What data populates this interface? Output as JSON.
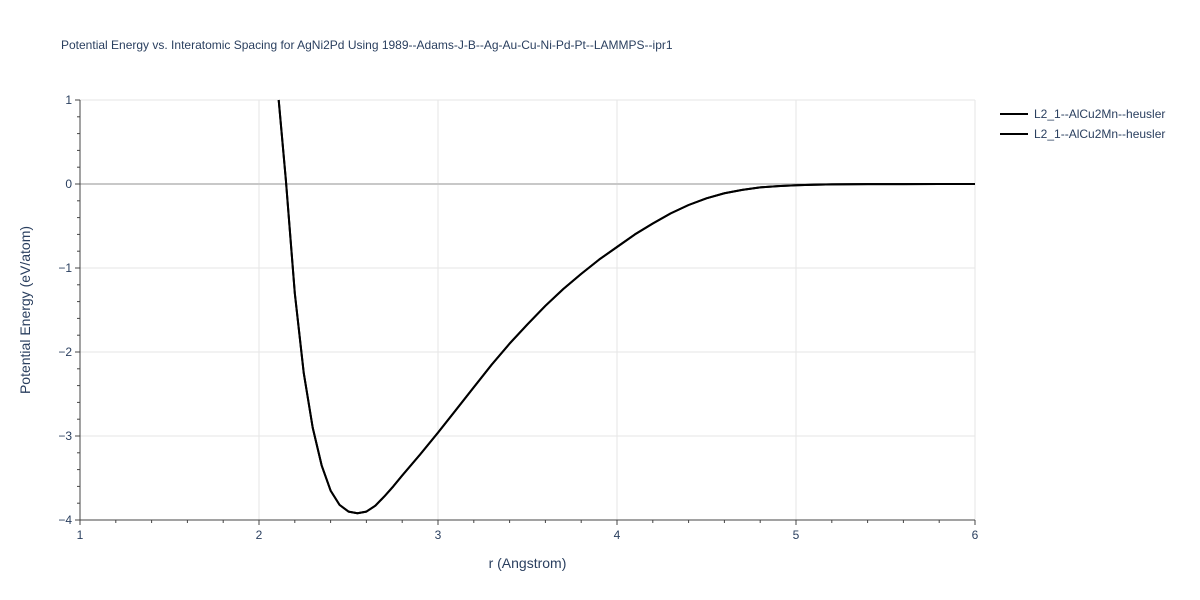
{
  "chart_data": {
    "type": "line",
    "title": "Potential Energy vs. Interatomic Spacing for AgNi2Pd Using 1989--Adams-J-B--Ag-Au-Cu-Ni-Pd-Pt--LAMMPS--ipr1",
    "xlabel": "r (Angstrom)",
    "ylabel": "Potential Energy (eV/atom)",
    "xlim": [
      1,
      6
    ],
    "ylim": [
      -4,
      1
    ],
    "x_ticks": [
      1,
      2,
      3,
      4,
      5,
      6
    ],
    "x_tick_labels": [
      "1",
      "2",
      "3",
      "4",
      "5",
      "6"
    ],
    "y_ticks": [
      1,
      0,
      -1,
      -2,
      -3,
      -4
    ],
    "y_tick_labels": [
      "1",
      "0",
      "−1",
      "−2",
      "−3",
      "−4"
    ],
    "grid": true,
    "legend_position": "top-right",
    "line_color": "#000000",
    "grid_color": "#e5e5e5",
    "zero_line_color": "#c8c8c8",
    "series": [
      {
        "name": "L2_1--AlCu2Mn--heusler",
        "x": [
          2.11,
          2.15,
          2.2,
          2.25,
          2.3,
          2.35,
          2.4,
          2.45,
          2.5,
          2.55,
          2.6,
          2.65,
          2.7,
          2.75,
          2.8,
          2.9,
          3.0,
          3.1,
          3.2,
          3.3,
          3.4,
          3.5,
          3.6,
          3.7,
          3.8,
          3.9,
          4.0,
          4.1,
          4.2,
          4.3,
          4.4,
          4.5,
          4.6,
          4.7,
          4.8,
          4.9,
          5.0,
          5.1,
          5.2,
          5.3,
          5.4,
          5.6,
          5.8,
          6.0
        ],
        "y": [
          1.0,
          0.05,
          -1.3,
          -2.25,
          -2.9,
          -3.35,
          -3.65,
          -3.82,
          -3.9,
          -3.92,
          -3.9,
          -3.83,
          -3.72,
          -3.6,
          -3.47,
          -3.22,
          -2.96,
          -2.69,
          -2.42,
          -2.15,
          -1.9,
          -1.67,
          -1.45,
          -1.25,
          -1.07,
          -0.9,
          -0.75,
          -0.6,
          -0.47,
          -0.35,
          -0.25,
          -0.17,
          -0.11,
          -0.07,
          -0.04,
          -0.025,
          -0.015,
          -0.009,
          -0.005,
          -0.003,
          -0.002,
          -0.001,
          0.0,
          0.0
        ]
      },
      {
        "name": "L2_1--AlCu2Mn--heusler",
        "x": [
          2.11,
          2.15,
          2.2,
          2.25,
          2.3,
          2.35,
          2.4,
          2.45,
          2.5,
          2.55,
          2.6,
          2.65,
          2.7,
          2.75,
          2.8,
          2.9,
          3.0,
          3.1,
          3.2,
          3.3,
          3.4,
          3.5,
          3.6,
          3.7,
          3.8,
          3.9,
          4.0,
          4.1,
          4.2,
          4.3,
          4.4,
          4.5,
          4.6,
          4.7,
          4.8,
          4.9,
          5.0,
          5.1,
          5.2,
          5.3,
          5.4,
          5.6,
          5.8,
          6.0
        ],
        "y": [
          1.0,
          0.05,
          -1.3,
          -2.25,
          -2.9,
          -3.35,
          -3.65,
          -3.82,
          -3.9,
          -3.92,
          -3.9,
          -3.83,
          -3.72,
          -3.6,
          -3.47,
          -3.22,
          -2.96,
          -2.69,
          -2.42,
          -2.15,
          -1.9,
          -1.67,
          -1.45,
          -1.25,
          -1.07,
          -0.9,
          -0.75,
          -0.6,
          -0.47,
          -0.35,
          -0.25,
          -0.17,
          -0.11,
          -0.07,
          -0.04,
          -0.025,
          -0.015,
          -0.009,
          -0.005,
          -0.003,
          -0.002,
          -0.001,
          0.0,
          0.0
        ]
      }
    ]
  }
}
